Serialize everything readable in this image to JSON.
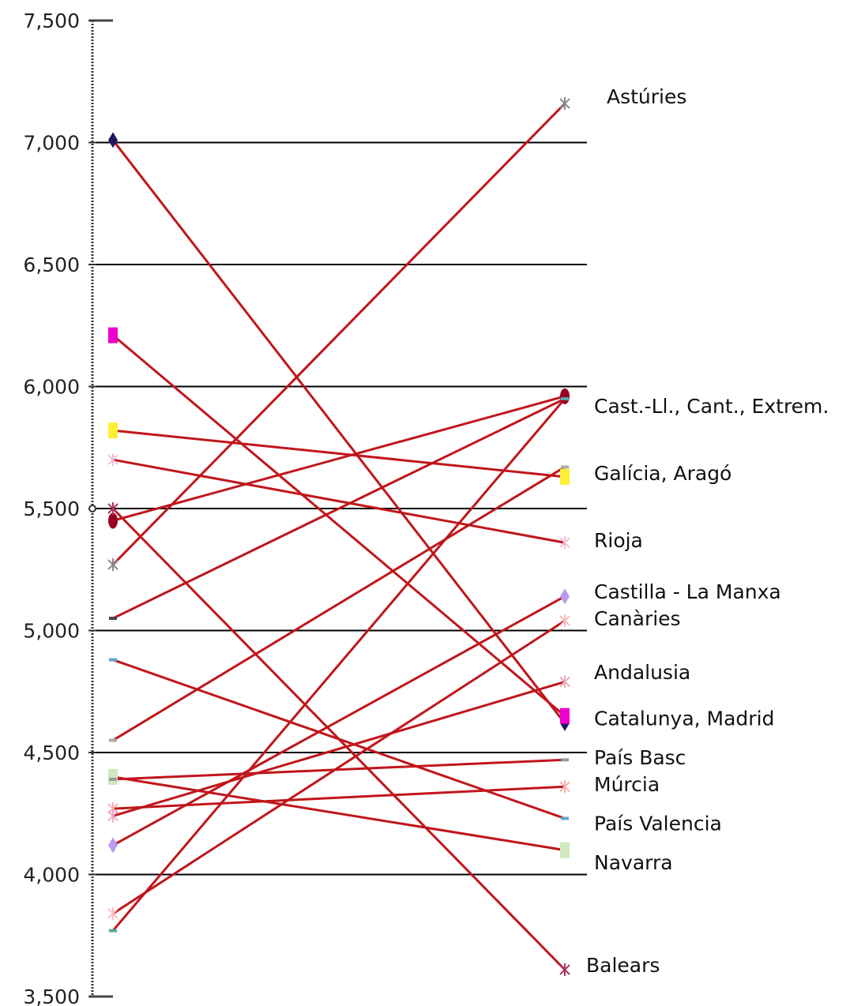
{
  "chart_data": {
    "type": "line",
    "title": "",
    "xlabel": "",
    "ylabel": "",
    "ylim": [
      3500,
      7500
    ],
    "yticks": [
      3500,
      4000,
      4500,
      5000,
      5500,
      6000,
      6500,
      7000,
      7500
    ],
    "ytick_labels": [
      "3,500",
      "4,000",
      "4,500",
      "5,000",
      "5,500",
      "6,000",
      "6,500",
      "7,000",
      "7,500"
    ],
    "x": [
      1,
      2
    ],
    "grid": true,
    "line_color": "#c0161b",
    "series": [
      {
        "values": [
          7010,
          4620
        ],
        "color": "#1a1a5e",
        "marker": "diamond"
      },
      {
        "values": [
          6210,
          4650
        ],
        "color": "#ee00cc",
        "marker": "square"
      },
      {
        "values": [
          5820,
          5630
        ],
        "color": "#ffee33",
        "marker": "square"
      },
      {
        "values": [
          5700,
          5360
        ],
        "color": "#f2c0d8",
        "marker": "cross"
      },
      {
        "values": [
          5450,
          5960
        ],
        "color": "#990022",
        "marker": "circle"
      },
      {
        "values": [
          5270,
          7160
        ],
        "color": "#888888",
        "marker": "cross"
      },
      {
        "values": [
          5050,
          5950
        ],
        "color": "#444444",
        "marker": "dash"
      },
      {
        "values": [
          4880,
          4230
        ],
        "color": "#5aa8c8",
        "marker": "dash"
      },
      {
        "values": [
          4550,
          5670
        ],
        "color": "#aaaaaa",
        "marker": "dash"
      },
      {
        "values": [
          4400,
          4100
        ],
        "color": "#cfe8c0",
        "marker": "square"
      },
      {
        "values": [
          4390,
          4470
        ],
        "color": "#999999",
        "marker": "dash"
      },
      {
        "values": [
          4270,
          4360
        ],
        "color": "#f4b0b0",
        "marker": "cross"
      },
      {
        "values": [
          4240,
          4790
        ],
        "color": "#f0a8c0",
        "marker": "cross"
      },
      {
        "values": [
          4120,
          5140
        ],
        "color": "#bb99ee",
        "marker": "diamond"
      },
      {
        "values": [
          3840,
          5040
        ],
        "color": "#ffbbbb",
        "marker": "cross"
      },
      {
        "values": [
          3770,
          5950
        ],
        "color": "#55aaaa",
        "marker": "dash"
      },
      {
        "values": [
          5500,
          3610
        ],
        "color": "#aa3366",
        "marker": "cross"
      }
    ],
    "labels": [
      {
        "text": "Astúries",
        "value": 7190
      },
      {
        "text": "Cast.-Ll., Cant., Extrem.",
        "value": 5920
      },
      {
        "text": "Galícia, Aragó",
        "value": 5645
      },
      {
        "text": "Rioja",
        "value": 5370
      },
      {
        "text": "Castilla - La Manxa",
        "value": 5160
      },
      {
        "text": "Canàries",
        "value": 5050
      },
      {
        "text": "Andalusia",
        "value": 4830
      },
      {
        "text": "Catalunya, Madrid",
        "value": 4640
      },
      {
        "text": "País Basc",
        "value": 4480
      },
      {
        "text": "Múrcia",
        "value": 4370
      },
      {
        "text": "País Valencia",
        "value": 4210
      },
      {
        "text": "Navarra",
        "value": 4050
      },
      {
        "text": "Balears",
        "value": 3630
      }
    ]
  }
}
